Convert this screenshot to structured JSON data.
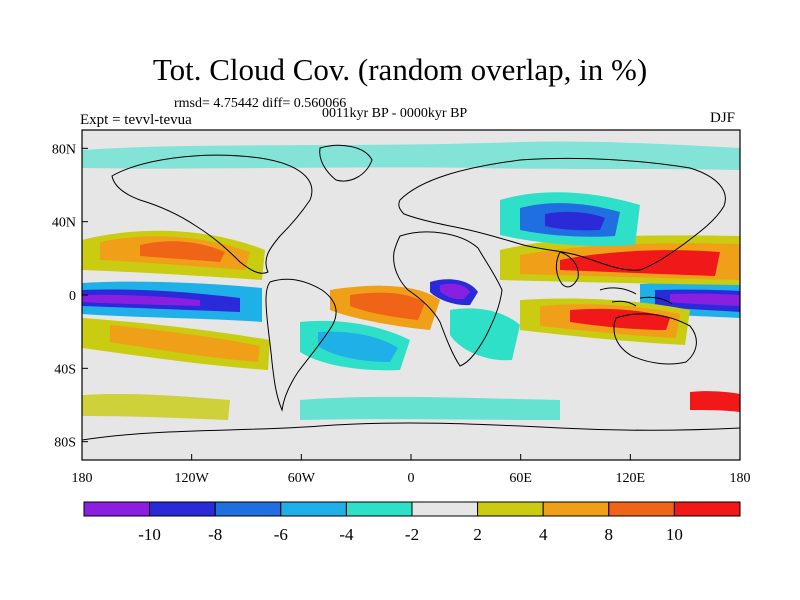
{
  "title": "Tot. Cloud Cov. (random overlap, in %)",
  "stats_line": "rmsd= 4.75442 diff= 0.560066",
  "subtitle": "0011kyr BP - 0000kyr BP",
  "experiment_label": "Expt = tevvl-tevua",
  "season": "DJF",
  "axes": {
    "lon_ticks": [
      "180",
      "120W",
      "60W",
      "0",
      "60E",
      "120E",
      "180"
    ],
    "lat_ticks": [
      "80N",
      "40N",
      "0",
      "40S",
      "80S"
    ]
  },
  "colorbar": {
    "labels": [
      "-10",
      "-8",
      "-6",
      "-4",
      "-2",
      "2",
      "4",
      "8",
      "10"
    ],
    "colors": [
      "#8a1fe0",
      "#2a2ad8",
      "#1f6fe0",
      "#1fb0e8",
      "#2fe0c8",
      "#e6e6e6",
      "#c9cc10",
      "#f0a018",
      "#f06418",
      "#f01818"
    ]
  },
  "palette": {
    "land_outline": "#000000",
    "neutral": "#e6e6e6"
  }
}
